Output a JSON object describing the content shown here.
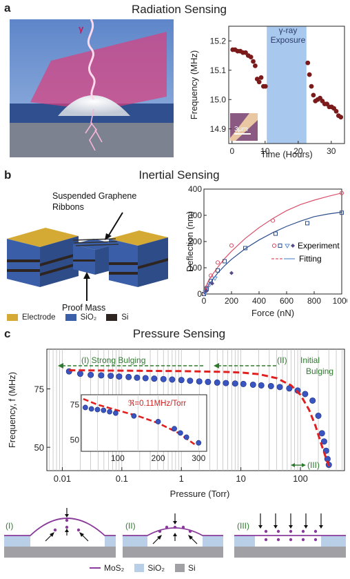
{
  "panel_a": {
    "letter": "a",
    "title": "Radiation Sensing",
    "illustration_label": "γ",
    "chart_data": {
      "type": "scatter",
      "xlabel": "Time (Hours)",
      "ylabel": "Frequency (MHz)",
      "xlim": [
        -1,
        34
      ],
      "ylim": [
        14.85,
        15.25
      ],
      "xticks": [
        0,
        10,
        20,
        30
      ],
      "yticks": [
        14.9,
        15.0,
        15.1,
        15.2
      ],
      "ytick_labels": [
        "14.9",
        "15.0",
        "15.1",
        "15.2"
      ],
      "shaded_region": {
        "x0": 10.5,
        "x1": 22.5,
        "label_line1": "γ-ray",
        "label_line2": "Exposure",
        "color": "#a9c8ee"
      },
      "inset_label": "3μm",
      "marker_color": "#7a1a1a",
      "x": [
        0.2,
        0.9,
        1.7,
        2.5,
        3.3,
        4.1,
        4.9,
        5.7,
        6.4,
        7.0,
        7.6,
        8.2,
        8.8,
        9.5,
        10.1,
        22.9,
        23.4,
        24.0,
        24.6,
        25.2,
        25.9,
        26.6,
        27.3,
        28.0,
        28.7,
        29.4,
        30.1,
        30.8,
        31.5,
        32.2,
        32.9
      ],
      "y": [
        15.17,
        15.17,
        15.165,
        15.165,
        15.16,
        15.16,
        15.15,
        15.145,
        15.13,
        15.115,
        15.07,
        15.06,
        15.075,
        15.045,
        15.045,
        15.125,
        15.085,
        15.045,
        15.015,
        14.995,
        15.0,
        15.005,
        14.995,
        14.985,
        14.985,
        14.975,
        14.975,
        14.97,
        14.96,
        14.945,
        14.94
      ]
    }
  },
  "panel_b": {
    "letter": "b",
    "title": "Inertial Sensing",
    "callout_ribbons_line1": "Suspended Graphene",
    "callout_ribbons_line2": "Ribbons",
    "callout_mass": "Proof Mass",
    "legend": [
      {
        "label": "Electrode",
        "color": "#d4aa34"
      },
      {
        "label": "SiO₂",
        "color": "#3a5fa8"
      },
      {
        "label": "Si",
        "color": "#2e2420"
      }
    ],
    "chart_data": {
      "type": "scatter",
      "xlabel": "Force (nN)",
      "ylabel": "Deflection (nm)",
      "xlim": [
        0,
        1000
      ],
      "ylim": [
        0,
        400
      ],
      "xticks": [
        0,
        200,
        400,
        600,
        800,
        1000
      ],
      "yticks": [
        0,
        100,
        200,
        300,
        400
      ],
      "legend_experiment": "Experiment",
      "legend_fitting": "Fitting",
      "series": [
        {
          "color": "#d9506a",
          "marker": "circle",
          "x": [
            0,
            20,
            50,
            100,
            200,
            500,
            1000
          ],
          "y": [
            0,
            25,
            70,
            120,
            185,
            280,
            385
          ],
          "fit_x": [
            0,
            25,
            50,
            100,
            150,
            200,
            300,
            400,
            500,
            600,
            700,
            800,
            900,
            1000
          ],
          "fit_y": [
            0,
            42,
            65,
            102,
            135,
            163,
            212,
            253,
            288,
            318,
            341,
            358,
            372,
            385
          ]
        },
        {
          "color": "#2a4c8c",
          "marker": "square",
          "x": [
            0,
            20,
            50,
            100,
            150,
            300,
            520,
            750,
            1000
          ],
          "y": [
            0,
            20,
            50,
            90,
            125,
            175,
            230,
            270,
            310
          ],
          "fit_x": [
            0,
            25,
            50,
            100,
            150,
            200,
            300,
            400,
            500,
            600,
            700,
            800,
            900,
            1000
          ],
          "fit_y": [
            0,
            26,
            46,
            80,
            108,
            132,
            173,
            206,
            234,
            258,
            278,
            295,
            305,
            312
          ]
        },
        {
          "color": "#5b8fd0",
          "marker": "triangle",
          "x": [
            10,
            40,
            80
          ],
          "y": [
            8,
            35,
            60
          ]
        },
        {
          "color": "#5a4a8a",
          "marker": "diamond",
          "x": [
            20,
            60,
            200
          ],
          "y": [
            12,
            40,
            80
          ]
        }
      ]
    }
  },
  "panel_c": {
    "letter": "c",
    "title": "Pressure Sensing",
    "chart_data": {
      "type": "scatter",
      "xlabel": "Pressure (Torr)",
      "ylabel": "Frequency, f (MHz)",
      "xscale": "log",
      "xlim": [
        0.0055,
        550
      ],
      "ylim": [
        40,
        92
      ],
      "xticks": [
        0.01,
        0.1,
        1,
        10,
        100
      ],
      "xtick_labels": [
        "0.01",
        "0.1",
        "1",
        "10",
        "100"
      ],
      "yticks": [
        50,
        75
      ],
      "annotation_I": "(I) Strong Bulging",
      "annotation_II_line1": "(II)",
      "annotation_II_line1b": "Initial",
      "annotation_II_line2": "Bulging",
      "annotation_III": "(III)",
      "marker_color": "#3a54c0",
      "fit_color": "#e02020",
      "x": [
        0.013,
        0.02,
        0.03,
        0.045,
        0.065,
        0.09,
        0.13,
        0.18,
        0.25,
        0.35,
        0.5,
        0.7,
        1.0,
        1.4,
        2.0,
        2.8,
        4.0,
        5.6,
        8.0,
        11,
        16,
        22,
        32,
        45,
        65,
        90,
        120,
        160,
        200,
        230,
        250,
        270,
        285,
        300
      ],
      "y": [
        82.5,
        81.5,
        81.0,
        80.8,
        80.6,
        80.3,
        80.1,
        79.8,
        79.6,
        79.4,
        79.2,
        79.0,
        78.8,
        78.5,
        78.2,
        78.0,
        77.7,
        77.5,
        77.3,
        77.1,
        76.8,
        76.5,
        76.2,
        75.8,
        75.2,
        74.3,
        72.8,
        70.0,
        63.5,
        56.0,
        52.5,
        48.5,
        45.0,
        42.5
      ],
      "fit_x": [
        0.013,
        0.1,
        1,
        5,
        10,
        20,
        40,
        70,
        100,
        140,
        180,
        220,
        260,
        300
      ],
      "fit_y": [
        83.0,
        82.8,
        82.6,
        82.3,
        82.0,
        81.3,
        79.6,
        76.5,
        72.5,
        66.0,
        59.0,
        52.0,
        46.5,
        42.0
      ],
      "inset": {
        "xlim": [
          10,
          320
        ],
        "ylim": [
          42,
          82
        ],
        "xticks": [
          100,
          200,
          300
        ],
        "yticks": [
          50,
          75
        ],
        "annotation": "ℜ=0.11MHz/Torr",
        "x": [
          20,
          35,
          50,
          65,
          80,
          95,
          140,
          200,
          240,
          255,
          270,
          300
        ],
        "y": [
          73,
          72,
          71.5,
          71,
          70,
          69,
          67,
          63,
          58,
          55,
          52,
          48
        ],
        "fit_x": [
          15,
          50,
          100,
          150,
          200,
          250,
          290
        ],
        "fit_y": [
          79,
          75,
          71,
          67,
          62,
          55,
          47
        ]
      }
    },
    "bulge_labels": [
      "(I)",
      "(II)",
      "(III)"
    ],
    "legend": [
      {
        "label": "MoS₂",
        "color": "#8a3a9a"
      },
      {
        "label": "SiO₂",
        "color": "#b9cfe8"
      },
      {
        "label": "Si",
        "color": "#a0a0a5"
      }
    ]
  }
}
